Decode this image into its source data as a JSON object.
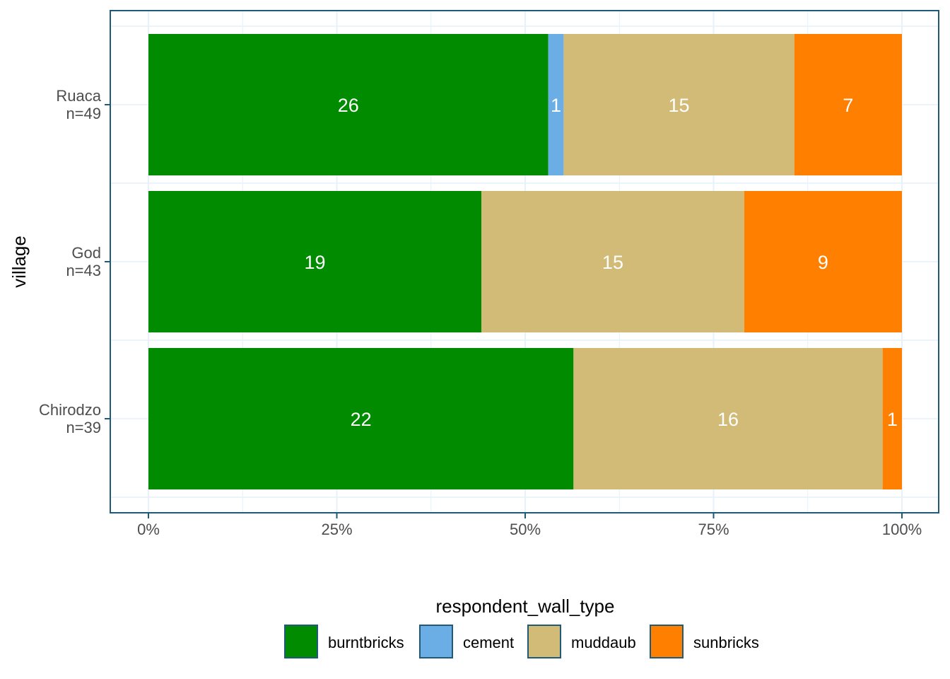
{
  "chart_data": {
    "type": "bar",
    "orientation": "horizontal",
    "stacked": "percent",
    "ylabel": "village",
    "xlabel": "",
    "categories": [
      {
        "name": "Ruaca",
        "count_label": "n=49"
      },
      {
        "name": "God",
        "count_label": "n=43"
      },
      {
        "name": "Chirodzo",
        "count_label": "n=39"
      }
    ],
    "series": [
      {
        "name": "burntbricks",
        "color": "#008b00",
        "values": [
          26,
          19,
          22
        ]
      },
      {
        "name": "cement",
        "color": "#6baee6",
        "values": [
          1,
          0,
          0
        ]
      },
      {
        "name": "muddaub",
        "color": "#d2bb76",
        "values": [
          15,
          15,
          16
        ]
      },
      {
        "name": "sunbricks",
        "color": "#ff7f00",
        "values": [
          7,
          9,
          1
        ]
      }
    ],
    "x_ticks": [
      "0%",
      "25%",
      "50%",
      "75%",
      "100%"
    ],
    "xlim": [
      0,
      100
    ],
    "legend": {
      "title": "respondent_wall_type",
      "position": "bottom"
    },
    "grid": true,
    "panel_border_color": "#1f5a78",
    "label_color": "#ffffff"
  }
}
